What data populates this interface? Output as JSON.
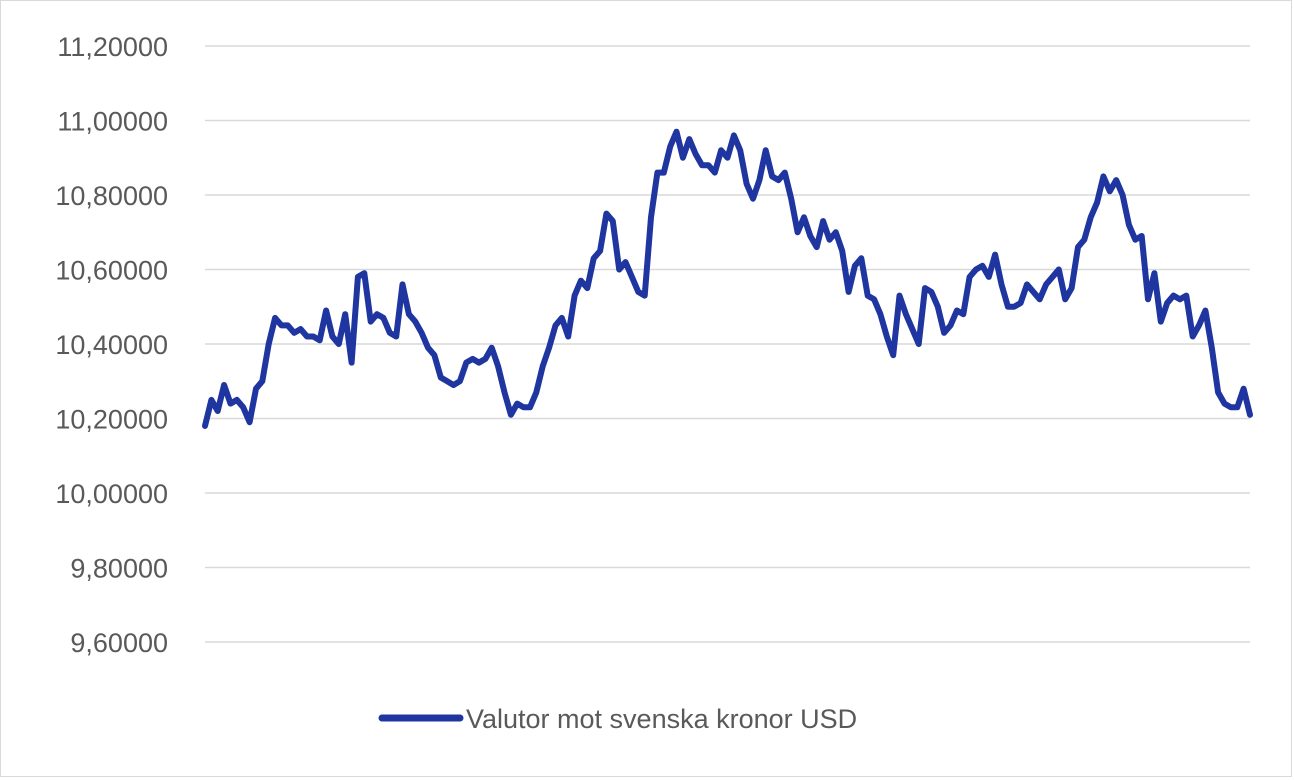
{
  "chart_data": {
    "type": "line",
    "title": "",
    "xlabel": "",
    "ylabel": "",
    "ylim": [
      9.6,
      11.2
    ],
    "y_ticks": [
      "9,60000",
      "9,80000",
      "10,00000",
      "10,20000",
      "10,40000",
      "10,60000",
      "10,80000",
      "11,00000",
      "11,20000"
    ],
    "y_tick_values": [
      9.6,
      9.8,
      10.0,
      10.2,
      10.4,
      10.6,
      10.8,
      11.0,
      11.2
    ],
    "grid": true,
    "legend_position": "bottom",
    "series": [
      {
        "name": "Valutor mot svenska kronor USD",
        "color": "#1f35a0",
        "values": [
          10.18,
          10.25,
          10.22,
          10.29,
          10.24,
          10.25,
          10.23,
          10.19,
          10.28,
          10.3,
          10.4,
          10.47,
          10.45,
          10.45,
          10.43,
          10.44,
          10.42,
          10.42,
          10.41,
          10.49,
          10.42,
          10.4,
          10.48,
          10.35,
          10.58,
          10.59,
          10.46,
          10.48,
          10.47,
          10.43,
          10.42,
          10.56,
          10.48,
          10.46,
          10.43,
          10.39,
          10.37,
          10.31,
          10.3,
          10.29,
          10.3,
          10.35,
          10.36,
          10.35,
          10.36,
          10.39,
          10.34,
          10.27,
          10.21,
          10.24,
          10.23,
          10.23,
          10.27,
          10.34,
          10.39,
          10.45,
          10.47,
          10.42,
          10.53,
          10.57,
          10.55,
          10.63,
          10.65,
          10.75,
          10.73,
          10.6,
          10.62,
          10.58,
          10.54,
          10.53,
          10.74,
          10.86,
          10.86,
          10.93,
          10.97,
          10.9,
          10.95,
          10.91,
          10.88,
          10.88,
          10.86,
          10.92,
          10.9,
          10.96,
          10.92,
          10.83,
          10.79,
          10.84,
          10.92,
          10.85,
          10.84,
          10.86,
          10.79,
          10.7,
          10.74,
          10.69,
          10.66,
          10.73,
          10.68,
          10.7,
          10.65,
          10.54,
          10.61,
          10.63,
          10.53,
          10.52,
          10.48,
          10.42,
          10.37,
          10.53,
          10.48,
          10.44,
          10.4,
          10.55,
          10.54,
          10.5,
          10.43,
          10.45,
          10.49,
          10.48,
          10.58,
          10.6,
          10.61,
          10.58,
          10.64,
          10.56,
          10.5,
          10.5,
          10.51,
          10.56,
          10.54,
          10.52,
          10.56,
          10.58,
          10.6,
          10.52,
          10.55,
          10.66,
          10.68,
          10.74,
          10.78,
          10.85,
          10.81,
          10.84,
          10.8,
          10.72,
          10.68,
          10.69,
          10.52,
          10.59,
          10.46,
          10.51,
          10.53,
          10.52,
          10.53,
          10.42,
          10.45,
          10.49,
          10.39,
          10.27,
          10.24,
          10.23,
          10.23,
          10.28,
          10.21
        ]
      }
    ]
  }
}
